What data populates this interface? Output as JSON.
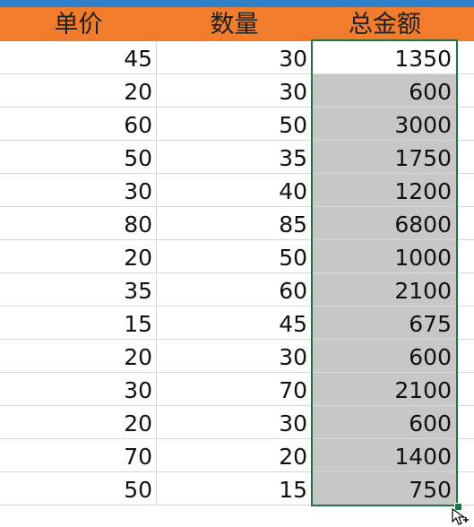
{
  "headers": {
    "unit_price": "单价",
    "quantity": "数量",
    "total": "总金额"
  },
  "rows": [
    {
      "price": "45",
      "qty": "30",
      "total": "1350"
    },
    {
      "price": "20",
      "qty": "30",
      "total": "600"
    },
    {
      "price": "60",
      "qty": "50",
      "total": "3000"
    },
    {
      "price": "50",
      "qty": "35",
      "total": "1750"
    },
    {
      "price": "30",
      "qty": "40",
      "total": "1200"
    },
    {
      "price": "80",
      "qty": "85",
      "total": "6800"
    },
    {
      "price": "20",
      "qty": "50",
      "total": "1000"
    },
    {
      "price": "35",
      "qty": "60",
      "total": "2100"
    },
    {
      "price": "15",
      "qty": "45",
      "total": "675"
    },
    {
      "price": "20",
      "qty": "30",
      "total": "600"
    },
    {
      "price": "30",
      "qty": "70",
      "total": "2100"
    },
    {
      "price": "20",
      "qty": "30",
      "total": "600"
    },
    {
      "price": "70",
      "qty": "20",
      "total": "1400"
    },
    {
      "price": "50",
      "qty": "15",
      "total": "750"
    }
  ],
  "colors": {
    "header_background": "#f07c2c",
    "top_bar": "#2f80c9",
    "selection_fill": "#c7c7c7",
    "selection_border": "#217346"
  },
  "icons": {
    "cursor": "move-cursor-icon"
  }
}
